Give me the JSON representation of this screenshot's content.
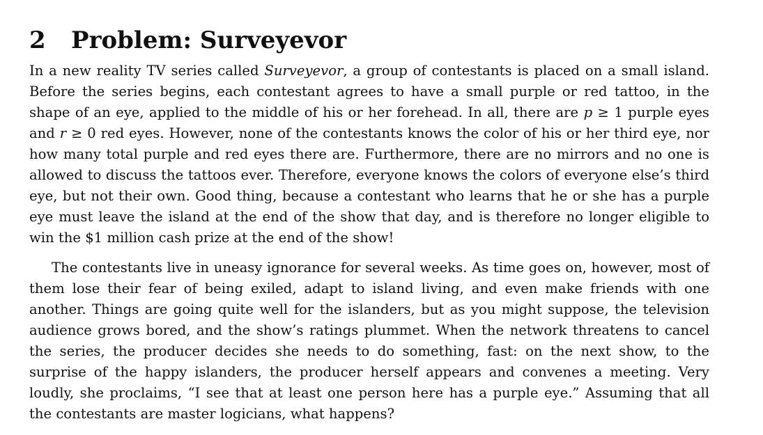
{
  "heading": {
    "number": "2",
    "title": "Problem: Surveyevor"
  },
  "paragraph1": {
    "before_title": "In a new reality TV series called ",
    "show_title": "Surveyevor",
    "after_title": ", a group of contestants is placed on a small island. Before the series begins, each contestant agrees to have a small purple or red tattoo, in the shape of an eye, applied to the middle of his or her forehead. In all, there are ",
    "p_var": "p",
    "p_condition": " ≥ 1",
    "middle": " purple eyes and ",
    "r_var": "r",
    "r_condition": " ≥ 0",
    "after_math": " red eyes. However, none of the contestants knows the color of his or her third eye, nor how many total purple and red eyes there are. Furthermore, there are no mirrors and no one is allowed to discuss the tattoos ever. Therefore, everyone knows the colors of everyone else’s third eye, but not their own. Good thing, because a contestant who learns that he or she has a purple eye must leave the island at the end of the show that day, and is therefore no longer eligible to win the $1 million cash prize at the end of the show!"
  },
  "paragraph2": {
    "text": "The contestants live in uneasy ignorance for several weeks. As time goes on, however, most of them lose their fear of being exiled, adapt to island living, and even make friends with one another. Things are going quite well for the islanders, but as you might suppose, the television audience grows bored, and the show’s ratings plummet. When the network threatens to cancel the series, the producer decides she needs to do something, fast: on the next show, to the surprise of the happy islanders, the producer herself appears and convenes a meeting. Very loudly, she proclaims, “I see that at least one person here has a purple eye.” Assuming that all the contestants are master logicians, what happens?"
  }
}
